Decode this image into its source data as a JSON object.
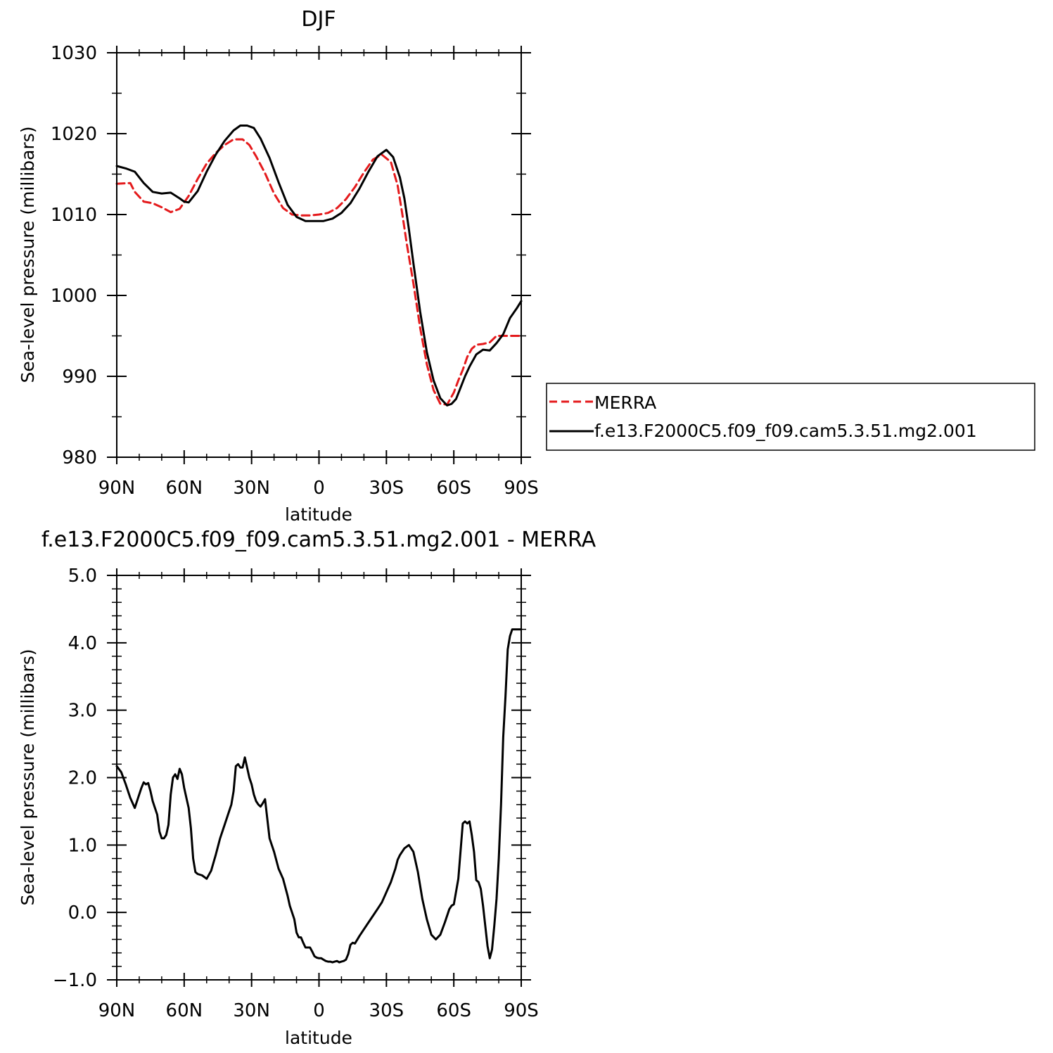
{
  "chart_data": [
    {
      "type": "line",
      "title": "DJF",
      "xlabel": "latitude",
      "ylabel": "Sea-level pressure (millibars)",
      "xlim": [
        90,
        -90
      ],
      "ylim": [
        980,
        1030
      ],
      "x_ticks": [
        {
          "value": 90,
          "label": "90N"
        },
        {
          "value": 60,
          "label": "60N"
        },
        {
          "value": 30,
          "label": "30N"
        },
        {
          "value": 0,
          "label": "0"
        },
        {
          "value": -30,
          "label": "30S"
        },
        {
          "value": -60,
          "label": "60S"
        },
        {
          "value": -90,
          "label": "90S"
        }
      ],
      "y_ticks": [
        {
          "value": 980,
          "label": "980"
        },
        {
          "value": 990,
          "label": "990"
        },
        {
          "value": 1000,
          "label": "1000"
        },
        {
          "value": 1010,
          "label": "1010"
        },
        {
          "value": 1020,
          "label": "1020"
        },
        {
          "value": 1030,
          "label": "1030"
        }
      ],
      "legend_position": "right",
      "series": [
        {
          "name": "MERRA",
          "color": "#e41a1c",
          "dash": true,
          "x": [
            90,
            84,
            82,
            78,
            74,
            70,
            66,
            62,
            58,
            54,
            50,
            46,
            42,
            38,
            34,
            31,
            28,
            24,
            20,
            16,
            12,
            8,
            4,
            0,
            -4,
            -8,
            -12,
            -16,
            -20,
            -24,
            -28,
            -32,
            -35,
            -37,
            -39,
            -42,
            -45,
            -48,
            -51,
            -54,
            -57,
            -60,
            -62,
            -64,
            -66,
            -68,
            -70,
            -73,
            -76,
            -79,
            -82,
            -85,
            -88,
            -90
          ],
          "y": [
            1013.8,
            1013.9,
            1012.8,
            1011.6,
            1011.4,
            1010.9,
            1010.3,
            1010.7,
            1012.3,
            1014.4,
            1016.3,
            1017.6,
            1018.6,
            1019.3,
            1019.3,
            1018.6,
            1017.2,
            1015.1,
            1012.6,
            1010.8,
            1010.0,
            1009.9,
            1009.9,
            1010.0,
            1010.2,
            1010.8,
            1011.9,
            1013.4,
            1015.2,
            1016.8,
            1017.4,
            1016.5,
            1013.6,
            1010.2,
            1006.5,
            1001.5,
            996.0,
            991.5,
            988.3,
            986.6,
            986.5,
            988.0,
            989.5,
            990.8,
            992.4,
            993.4,
            993.9,
            994.0,
            994.2,
            995.0,
            995.0,
            995.0,
            995.0,
            995.0
          ]
        },
        {
          "name": "f.e13.F2000C5.f09_f09.cam5.3.51.mg2.001",
          "color": "#000000",
          "dash": false,
          "x": [
            90,
            86,
            82,
            78,
            74,
            70,
            66,
            62,
            60,
            58,
            54,
            50,
            46,
            42,
            38,
            35,
            32,
            29,
            26,
            22,
            18,
            14,
            10,
            6,
            2,
            -2,
            -6,
            -10,
            -14,
            -18,
            -22,
            -26,
            -30,
            -33,
            -36,
            -38,
            -40,
            -42,
            -45,
            -48,
            -51,
            -54,
            -57,
            -59,
            -61,
            -63,
            -65,
            -67,
            -70,
            -73,
            -76,
            -79,
            -82,
            -85,
            -88,
            -90
          ],
          "y": [
            1016.0,
            1015.7,
            1015.3,
            1013.9,
            1012.8,
            1012.6,
            1012.7,
            1012.0,
            1011.6,
            1011.5,
            1012.9,
            1015.3,
            1017.4,
            1019.1,
            1020.4,
            1021.0,
            1021.0,
            1020.7,
            1019.4,
            1017.0,
            1014.0,
            1011.2,
            1009.7,
            1009.2,
            1009.2,
            1009.2,
            1009.5,
            1010.2,
            1011.4,
            1013.2,
            1015.3,
            1017.2,
            1018.0,
            1017.1,
            1014.6,
            1012.0,
            1008.2,
            1004.0,
            998.0,
            993.0,
            989.5,
            987.3,
            986.4,
            986.6,
            987.2,
            988.6,
            990.0,
            991.2,
            992.7,
            993.3,
            993.2,
            994.1,
            995.2,
            997.2,
            998.4,
            999.3
          ]
        }
      ],
      "legend": [
        "MERRA",
        "f.e13.F2000C5.f09_f09.cam5.3.51.mg2.001"
      ]
    },
    {
      "type": "line",
      "title": "f.e13.F2000C5.f09_f09.cam5.3.51.mg2.001  -  MERRA",
      "xlabel": "latitude",
      "ylabel": "Sea-level pressure (millibars)",
      "xlim": [
        90,
        -90
      ],
      "ylim": [
        -1.0,
        5.0
      ],
      "x_ticks": [
        {
          "value": 90,
          "label": "90N"
        },
        {
          "value": 60,
          "label": "60N"
        },
        {
          "value": 30,
          "label": "30N"
        },
        {
          "value": 0,
          "label": "0"
        },
        {
          "value": -30,
          "label": "30S"
        },
        {
          "value": -60,
          "label": "60S"
        },
        {
          "value": -90,
          "label": "90S"
        }
      ],
      "y_ticks": [
        {
          "value": -1.0,
          "label": "−1.0"
        },
        {
          "value": 0.0,
          "label": "0.0"
        },
        {
          "value": 1.0,
          "label": "1.0"
        },
        {
          "value": 2.0,
          "label": "2.0"
        },
        {
          "value": 3.0,
          "label": "3.0"
        },
        {
          "value": 4.0,
          "label": "4.0"
        },
        {
          "value": 5.0,
          "label": "5.0"
        }
      ],
      "series": [
        {
          "color": "#000000",
          "dash": false,
          "x": [
            90,
            88,
            86,
            84,
            82,
            80,
            79,
            78,
            77,
            76,
            75,
            74,
            73,
            72,
            71,
            70,
            69,
            68,
            67,
            66,
            65,
            64,
            63,
            62,
            61,
            60,
            59,
            58,
            57,
            56,
            55,
            54,
            52,
            50,
            48,
            46,
            44,
            42,
            41,
            40,
            39,
            38,
            37,
            36,
            35,
            34,
            33,
            31,
            30,
            29,
            28,
            27,
            26,
            25,
            24,
            22,
            20,
            18,
            16,
            14,
            13,
            12,
            11,
            10,
            9,
            8,
            7,
            6,
            5,
            4,
            3,
            2,
            1,
            0,
            -1,
            -2,
            -3,
            -4,
            -5,
            -6,
            -7,
            -8,
            -9,
            -10,
            -11,
            -12,
            -13,
            -14,
            -15,
            -16,
            -18,
            -20,
            -22,
            -24,
            -26,
            -28,
            -30,
            -32,
            -34,
            -35,
            -36,
            -38,
            -40,
            -42,
            -43,
            -44,
            -46,
            -48,
            -50,
            -52,
            -54,
            -56,
            -58,
            -59,
            -60,
            -62,
            -64,
            -65,
            -66,
            -67,
            -68,
            -69,
            -70,
            -71,
            -72,
            -73,
            -74,
            -75,
            -76,
            -77,
            -78,
            -79,
            -80,
            -81,
            -82,
            -83,
            -84,
            -85,
            -86,
            -87,
            -88,
            -89,
            -90
          ],
          "y": [
            2.17,
            2.08,
            1.9,
            1.7,
            1.55,
            1.75,
            1.85,
            1.93,
            1.9,
            1.92,
            1.8,
            1.65,
            1.55,
            1.45,
            1.2,
            1.1,
            1.1,
            1.15,
            1.3,
            1.75,
            2.0,
            2.05,
            1.98,
            2.13,
            2.05,
            1.85,
            1.7,
            1.55,
            1.25,
            0.8,
            0.6,
            0.57,
            0.55,
            0.5,
            0.62,
            0.85,
            1.1,
            1.3,
            1.4,
            1.5,
            1.6,
            1.8,
            2.17,
            2.2,
            2.15,
            2.15,
            2.3,
            2.0,
            1.9,
            1.75,
            1.65,
            1.6,
            1.57,
            1.62,
            1.68,
            1.1,
            0.9,
            0.65,
            0.5,
            0.25,
            0.1,
            0.0,
            -0.1,
            -0.3,
            -0.37,
            -0.37,
            -0.45,
            -0.52,
            -0.52,
            -0.52,
            -0.58,
            -0.65,
            -0.67,
            -0.68,
            -0.68,
            -0.7,
            -0.72,
            -0.73,
            -0.73,
            -0.74,
            -0.73,
            -0.72,
            -0.74,
            -0.73,
            -0.72,
            -0.7,
            -0.62,
            -0.48,
            -0.45,
            -0.46,
            -0.35,
            -0.25,
            -0.15,
            -0.05,
            0.05,
            0.15,
            0.3,
            0.45,
            0.65,
            0.78,
            0.85,
            0.95,
            1.0,
            0.9,
            0.75,
            0.6,
            0.2,
            -0.1,
            -0.33,
            -0.4,
            -0.33,
            -0.15,
            0.05,
            0.1,
            0.12,
            0.5,
            1.32,
            1.35,
            1.32,
            1.35,
            1.15,
            0.9,
            0.48,
            0.45,
            0.35,
            0.1,
            -0.2,
            -0.5,
            -0.68,
            -0.55,
            -0.2,
            0.2,
            0.8,
            1.6,
            2.6,
            3.2,
            3.9,
            4.1,
            4.2,
            4.2,
            4.2,
            4.2,
            4.2
          ]
        }
      ]
    }
  ]
}
